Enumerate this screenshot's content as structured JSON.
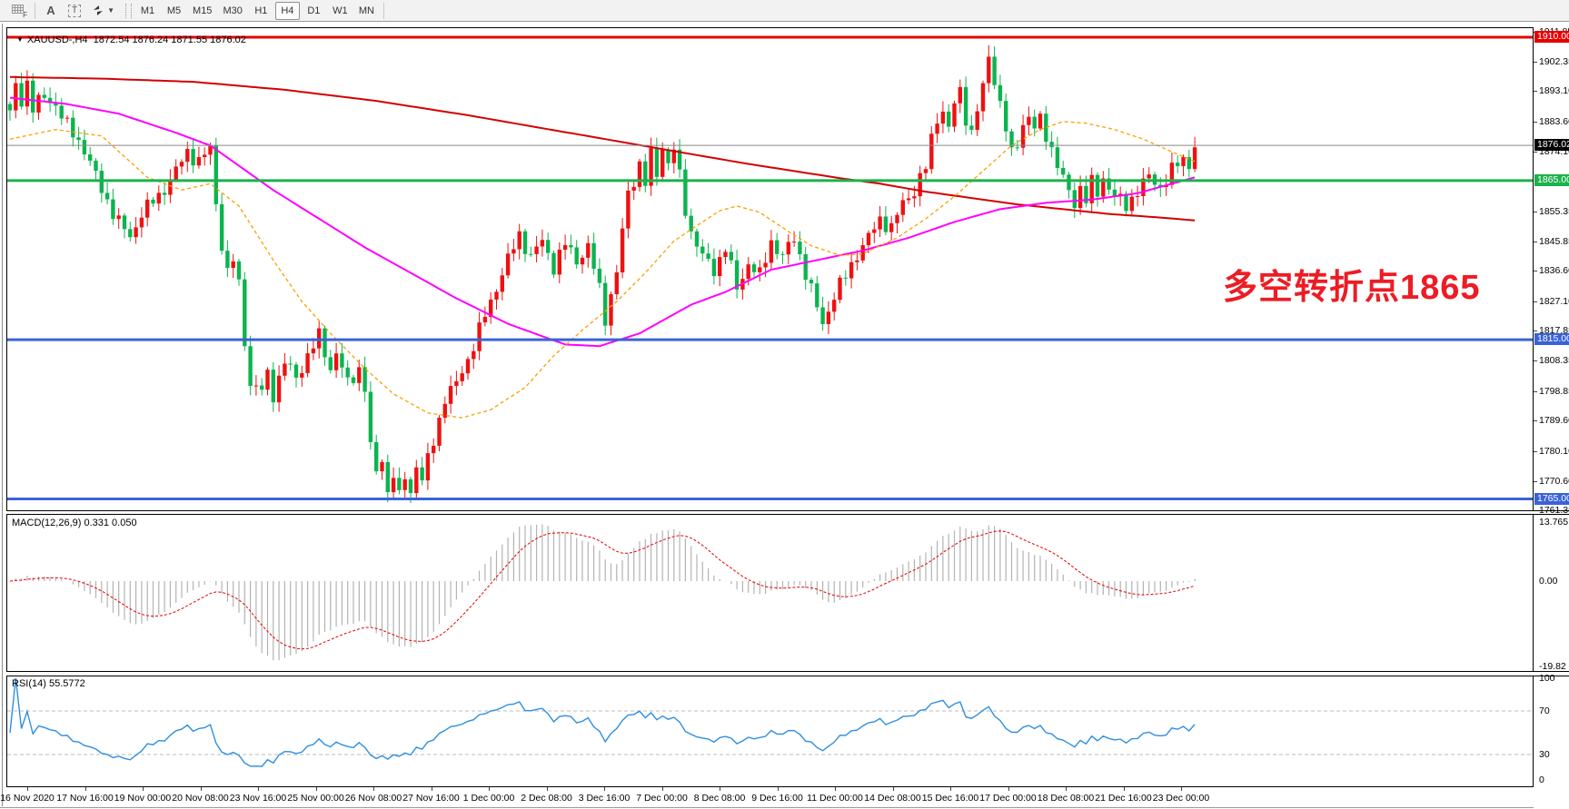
{
  "toolbar": {
    "tools": [
      {
        "id": "grid-f",
        "label": "F"
      },
      {
        "id": "text-label",
        "label": "A"
      },
      {
        "id": "text-box",
        "label": "T"
      },
      {
        "id": "arrows",
        "label": ""
      }
    ],
    "timeframes": [
      "M1",
      "M5",
      "M15",
      "M30",
      "H1",
      "H4",
      "D1",
      "W1",
      "MN"
    ],
    "active_timeframe": "H4"
  },
  "chart": {
    "title_symbol": "XAUUSD-,H4",
    "title_ohlc": "1872.54 1876.24 1871.55 1876.02",
    "annotation": {
      "text": "多空转折点1865",
      "color": "#ed1c24"
    }
  },
  "chart_data": {
    "type": "candlestick",
    "symbol": "XAUUSD",
    "timeframe": "H4",
    "bars": 208,
    "ylim": [
      1761.3,
      1913.1
    ],
    "candle_up_color": "#ee1111",
    "candle_down_color": "#0bb44e",
    "close_waypoints": [
      [
        0,
        1886
      ],
      [
        1,
        1894
      ],
      [
        2,
        1890
      ],
      [
        3,
        1896
      ],
      [
        4,
        1888
      ],
      [
        6,
        1891
      ],
      [
        8,
        1889
      ],
      [
        10,
        1882
      ],
      [
        13,
        1875
      ],
      [
        16,
        1862
      ],
      [
        19,
        1852
      ],
      [
        21,
        1847
      ],
      [
        23,
        1855
      ],
      [
        26,
        1860
      ],
      [
        29,
        1868
      ],
      [
        31,
        1874
      ],
      [
        33,
        1871
      ],
      [
        35,
        1875
      ],
      [
        36,
        1858
      ],
      [
        37,
        1845
      ],
      [
        38,
        1836
      ],
      [
        39,
        1840
      ],
      [
        40,
        1832
      ],
      [
        41,
        1815
      ],
      [
        42,
        1801
      ],
      [
        44,
        1799
      ],
      [
        45,
        1804
      ],
      [
        46,
        1798
      ],
      [
        48,
        1808
      ],
      [
        50,
        1803
      ],
      [
        52,
        1810
      ],
      [
        54,
        1816
      ],
      [
        56,
        1806
      ],
      [
        57,
        1811
      ],
      [
        59,
        1801
      ],
      [
        61,
        1806
      ],
      [
        62,
        1800
      ],
      [
        63,
        1781
      ],
      [
        64,
        1773
      ],
      [
        65,
        1778
      ],
      [
        66,
        1767
      ],
      [
        67,
        1773
      ],
      [
        68,
        1765
      ],
      [
        69,
        1772
      ],
      [
        70,
        1767
      ],
      [
        71,
        1776
      ],
      [
        72,
        1771
      ],
      [
        74,
        1783
      ],
      [
        76,
        1797
      ],
      [
        78,
        1801
      ],
      [
        80,
        1809
      ],
      [
        82,
        1818
      ],
      [
        84,
        1827
      ],
      [
        86,
        1836
      ],
      [
        88,
        1844
      ],
      [
        89,
        1848
      ],
      [
        91,
        1841
      ],
      [
        93,
        1846
      ],
      [
        95,
        1838
      ],
      [
        97,
        1845
      ],
      [
        99,
        1840
      ],
      [
        101,
        1844
      ],
      [
        103,
        1831
      ],
      [
        104,
        1822
      ],
      [
        106,
        1836
      ],
      [
        107,
        1849
      ],
      [
        108,
        1861
      ],
      [
        110,
        1870
      ],
      [
        111,
        1864
      ],
      [
        112,
        1873
      ],
      [
        113,
        1867
      ],
      [
        114,
        1876
      ],
      [
        115,
        1870
      ],
      [
        116,
        1875
      ],
      [
        117,
        1866
      ],
      [
        118,
        1856
      ],
      [
        119,
        1849
      ],
      [
        121,
        1841
      ],
      [
        123,
        1837
      ],
      [
        125,
        1844
      ],
      [
        127,
        1831
      ],
      [
        129,
        1839
      ],
      [
        131,
        1835
      ],
      [
        133,
        1846
      ],
      [
        135,
        1841
      ],
      [
        137,
        1847
      ],
      [
        139,
        1836
      ],
      [
        141,
        1825
      ],
      [
        142,
        1820
      ],
      [
        144,
        1829
      ],
      [
        146,
        1835
      ],
      [
        148,
        1842
      ],
      [
        150,
        1847
      ],
      [
        152,
        1853
      ],
      [
        154,
        1850
      ],
      [
        156,
        1858
      ],
      [
        158,
        1862
      ],
      [
        160,
        1869
      ],
      [
        161,
        1878
      ],
      [
        162,
        1885
      ],
      [
        163,
        1887
      ],
      [
        164,
        1881
      ],
      [
        165,
        1889
      ],
      [
        166,
        1893
      ],
      [
        167,
        1885
      ],
      [
        168,
        1880
      ],
      [
        169,
        1887
      ],
      [
        170,
        1894
      ],
      [
        171,
        1904
      ],
      [
        172,
        1897
      ],
      [
        173,
        1889
      ],
      [
        174,
        1881
      ],
      [
        175,
        1873
      ],
      [
        176,
        1877
      ],
      [
        177,
        1883
      ],
      [
        178,
        1885
      ],
      [
        179,
        1881
      ],
      [
        180,
        1884
      ],
      [
        182,
        1875
      ],
      [
        184,
        1865
      ],
      [
        186,
        1858
      ],
      [
        187,
        1863
      ],
      [
        188,
        1859
      ],
      [
        189,
        1864
      ],
      [
        190,
        1861
      ],
      [
        191,
        1866
      ],
      [
        193,
        1860
      ],
      [
        195,
        1857
      ],
      [
        197,
        1862
      ],
      [
        199,
        1866
      ],
      [
        201,
        1863
      ],
      [
        203,
        1868
      ],
      [
        205,
        1872
      ],
      [
        206,
        1870
      ],
      [
        207,
        1876
      ]
    ],
    "ma_lines": [
      {
        "name": "ma-slow",
        "color": "#d40000",
        "width": 2,
        "dash": "",
        "points": [
          [
            0,
            1897.5
          ],
          [
            16,
            1897
          ],
          [
            32,
            1896
          ],
          [
            48,
            1893.5
          ],
          [
            64,
            1890
          ],
          [
            80,
            1885.5
          ],
          [
            96,
            1880.5
          ],
          [
            112,
            1875.5
          ],
          [
            128,
            1870.5
          ],
          [
            144,
            1866
          ],
          [
            152,
            1864
          ],
          [
            160,
            1861.5
          ],
          [
            168,
            1859.5
          ],
          [
            176,
            1857.5
          ],
          [
            184,
            1856
          ],
          [
            192,
            1854.5
          ],
          [
            200,
            1853.5
          ],
          [
            207,
            1852.5
          ]
        ]
      },
      {
        "name": "ma-mid",
        "color": "#ff00ff",
        "width": 2,
        "dash": "",
        "points": [
          [
            0,
            1891
          ],
          [
            10,
            1889
          ],
          [
            19,
            1886
          ],
          [
            29,
            1880
          ],
          [
            35,
            1876
          ],
          [
            46,
            1862
          ],
          [
            62,
            1844
          ],
          [
            78,
            1828
          ],
          [
            87,
            1820
          ],
          [
            97,
            1813.5
          ],
          [
            103,
            1813
          ],
          [
            110,
            1817
          ],
          [
            119,
            1826
          ],
          [
            125,
            1830
          ],
          [
            133,
            1837
          ],
          [
            141,
            1840
          ],
          [
            149,
            1843
          ],
          [
            157,
            1847
          ],
          [
            165,
            1852
          ],
          [
            173,
            1856
          ],
          [
            181,
            1858
          ],
          [
            189,
            1859
          ],
          [
            197,
            1861
          ],
          [
            203,
            1864
          ],
          [
            207,
            1866
          ]
        ]
      },
      {
        "name": "ma-fast",
        "color": "#ff9d00",
        "width": 1.3,
        "dash": "4,3",
        "points": [
          [
            0,
            1878
          ],
          [
            8,
            1881
          ],
          [
            16,
            1879
          ],
          [
            24,
            1866
          ],
          [
            30,
            1862
          ],
          [
            35,
            1864
          ],
          [
            40,
            1857
          ],
          [
            46,
            1840
          ],
          [
            51,
            1827
          ],
          [
            56,
            1817
          ],
          [
            62,
            1806
          ],
          [
            67,
            1798
          ],
          [
            73,
            1792
          ],
          [
            79,
            1790.5
          ],
          [
            84,
            1793
          ],
          [
            90,
            1800
          ],
          [
            95,
            1810
          ],
          [
            100,
            1818
          ],
          [
            106,
            1827
          ],
          [
            111,
            1836
          ],
          [
            116,
            1846
          ],
          [
            121,
            1852
          ],
          [
            124,
            1855.5
          ],
          [
            127,
            1857
          ],
          [
            131,
            1855
          ],
          [
            136,
            1849
          ],
          [
            140,
            1844.5
          ],
          [
            145,
            1841.5
          ],
          [
            149,
            1842
          ],
          [
            155,
            1847
          ],
          [
            160,
            1853
          ],
          [
            165,
            1860
          ],
          [
            170,
            1868
          ],
          [
            175,
            1876
          ],
          [
            180,
            1881
          ],
          [
            184,
            1883.5
          ],
          [
            188,
            1883
          ],
          [
            193,
            1881
          ],
          [
            198,
            1878
          ],
          [
            203,
            1874
          ],
          [
            207,
            1871
          ]
        ]
      }
    ],
    "hlines": [
      {
        "price": 1910.0,
        "color": "#e60000",
        "width": 3
      },
      {
        "price": 1876.02,
        "color": "#888888",
        "width": 1
      },
      {
        "price": 1865.0,
        "color": "#1cb24b",
        "width": 3
      },
      {
        "price": 1815.0,
        "color": "#3a62d8",
        "width": 3
      },
      {
        "price": 1765.0,
        "color": "#3a62d8",
        "width": 3
      }
    ],
    "price_ticks": [
      [
        1911.85,
        "1911.85"
      ],
      [
        1902.35,
        "1902.35"
      ],
      [
        1893.1,
        "1893.10"
      ],
      [
        1883.6,
        "1883.60"
      ],
      [
        1874.1,
        "1874.10"
      ],
      [
        1855.35,
        "1855.35"
      ],
      [
        1845.85,
        "1845.85"
      ],
      [
        1836.6,
        "1836.60"
      ],
      [
        1827.1,
        "1827.10"
      ],
      [
        1817.85,
        "1817.85"
      ],
      [
        1808.35,
        "1808.35"
      ],
      [
        1798.85,
        "1798.85"
      ],
      [
        1789.6,
        "1789.60"
      ],
      [
        1780.1,
        "1780.10"
      ],
      [
        1770.6,
        "1770.60"
      ],
      [
        1761.35,
        "1761.35"
      ]
    ],
    "price_badges": [
      {
        "price": 1910.0,
        "label": "1910.00",
        "bg": "#e60000",
        "fg": "#ffffff"
      },
      {
        "price": 1876.02,
        "label": "1876.02",
        "bg": "#000000",
        "fg": "#ffffff"
      },
      {
        "price": 1865.0,
        "label": "1865.00",
        "bg": "#1cb24b",
        "fg": "#ffffff"
      },
      {
        "price": 1815.0,
        "label": "1815.00",
        "bg": "#3a62d8",
        "fg": "#ffffff"
      },
      {
        "price": 1765.0,
        "label": "1765.00",
        "bg": "#3a62d8",
        "fg": "#ffffff"
      }
    ],
    "macd": {
      "label": "MACD(12,26,9) 0.331 0.050",
      "fast": 12,
      "slow": 26,
      "signal": 9,
      "value": 0.331,
      "signal_value": 0.05,
      "axis_ticks": [
        [
          13.765,
          "13.765"
        ],
        [
          0,
          "0.00"
        ],
        [
          -19.82,
          "-19.82"
        ]
      ],
      "hist_color": "#b3b3b3",
      "signal_color": "#e00000"
    },
    "rsi": {
      "label": "RSI(14) 55.5772",
      "period": 14,
      "value": 55.5772,
      "axis_ticks": [
        [
          100,
          "100"
        ],
        [
          70,
          "70"
        ],
        [
          30,
          "30"
        ],
        [
          0,
          "0"
        ]
      ],
      "level_lines": [
        70,
        30
      ],
      "color": "#2e8fe0"
    },
    "time_labels": [
      "16 Nov 2020",
      "17 Nov 16:00",
      "19 Nov 00:00",
      "20 Nov 08:00",
      "23 Nov 16:00",
      "25 Nov 00:00",
      "26 Nov 08:00",
      "27 Nov 16:00",
      "1 Dec 00:00",
      "2 Dec 08:00",
      "3 Dec 16:00",
      "7 Dec 00:00",
      "8 Dec 08:00",
      "9 Dec 16:00",
      "11 Dec 00:00",
      "14 Dec 08:00",
      "15 Dec 16:00",
      "17 Dec 00:00",
      "18 Dec 08:00",
      "21 Dec 16:00",
      "23 Dec 00:00"
    ],
    "tick_start_x": 30,
    "tick_step_x": 63.5,
    "bar_step_x": 6.3,
    "first_bar_x": 11
  }
}
